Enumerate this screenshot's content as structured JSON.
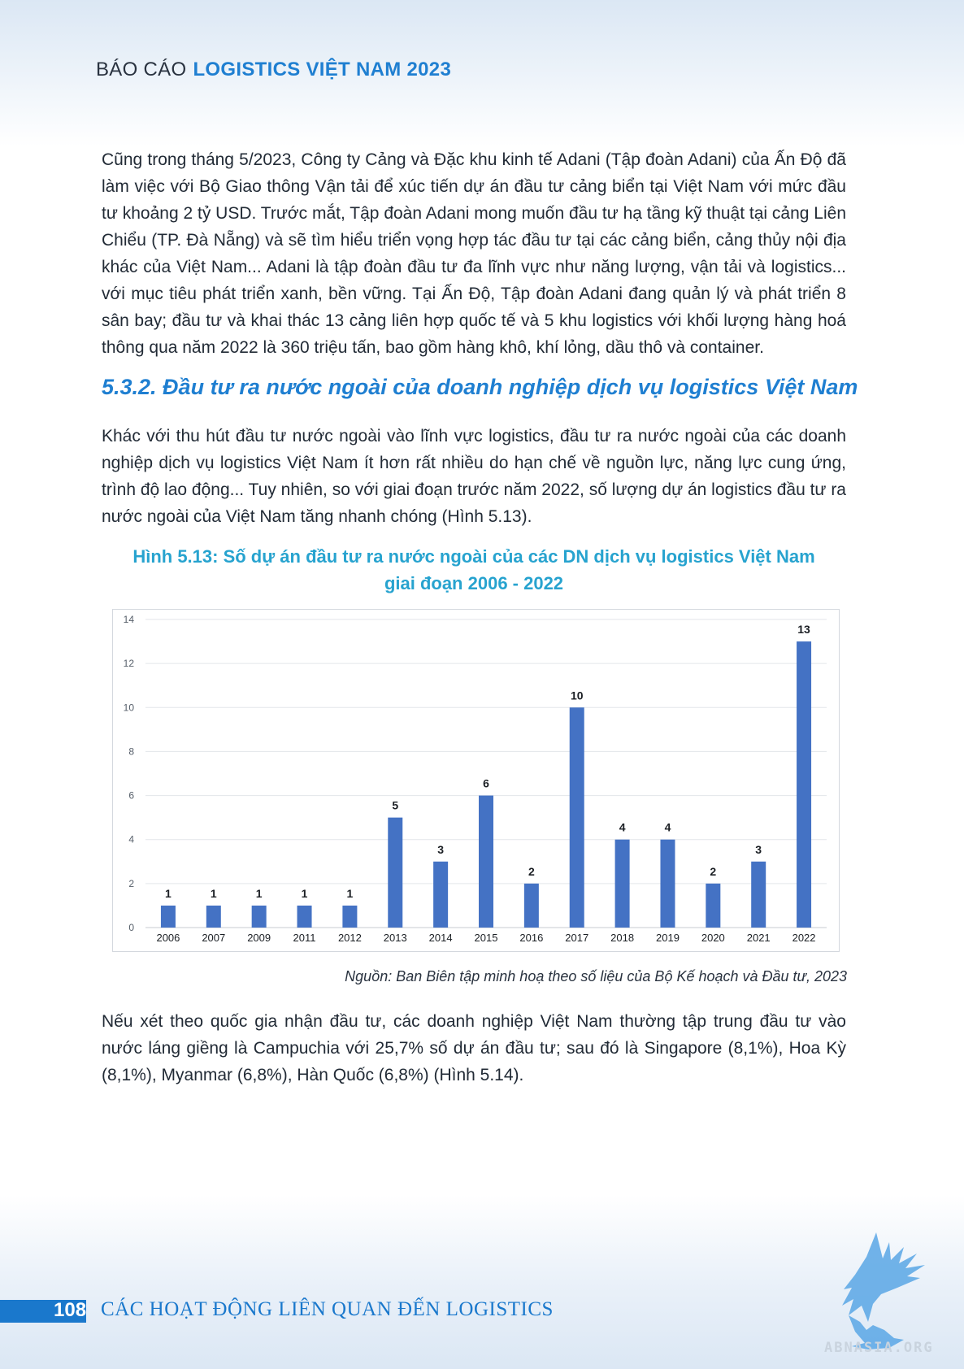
{
  "header": {
    "prefix": "BÁO CÁO",
    "title": "LOGISTICS VIỆT NAM 2023"
  },
  "paragraphs": {
    "p1": "Cũng trong tháng 5/2023, Công ty Cảng và Đặc khu kinh tế Adani (Tập đoàn Adani) của Ấn Độ đã làm việc với Bộ Giao thông Vận tải để xúc tiến dự án đầu tư cảng biển tại Việt Nam với mức đầu tư khoảng 2 tỷ USD. Trước mắt, Tập đoàn Adani mong muốn đầu tư hạ tầng kỹ thuật tại cảng Liên Chiểu (TP. Đà Nẵng) và sẽ tìm hiểu triển vọng hợp tác đầu tư tại các cảng biển, cảng thủy nội địa khác của Việt Nam... Adani là tập đoàn đầu tư đa lĩnh vực như năng lượng, vận tải và logistics... với mục tiêu phát triển xanh, bền vững. Tại Ấn Độ, Tập đoàn Adani đang quản lý và phát triển 8 sân bay; đầu tư và khai thác 13 cảng liên hợp quốc tế và 5 khu logistics với khối lượng hàng hoá thông qua năm 2022 là 360 triệu tấn, bao gồm hàng khô, khí lỏng, dầu thô và container.",
    "section_heading": "5.3.2. Đầu tư ra nước ngoài của doanh nghiệp dịch vụ logistics Việt Nam",
    "p2": "Khác với thu hút đầu tư nước ngoài vào lĩnh vực logistics, đầu tư ra nước ngoài của các doanh nghiệp dịch vụ logistics Việt Nam ít hơn rất nhiều do hạn chế về nguồn lực, năng lực cung ứng, trình độ lao động... Tuy nhiên, so với giai đoạn trước năm 2022, số lượng dự án logistics đầu tư ra nước ngoài của Việt Nam tăng nhanh chóng (Hình 5.13).",
    "p3": "Nếu xét theo quốc gia nhận đầu tư, các doanh nghiệp Việt Nam thường tập trung đầu tư vào nước láng giềng là Campuchia với 25,7% số dự án đầu tư; sau đó là Singapore (8,1%), Hoa Kỳ (8,1%), Myanmar (6,8%), Hàn Quốc (6,8%) (Hình 5.14)."
  },
  "figure": {
    "title_line1": "Hình 5.13: Số dự án đầu tư ra nước ngoài của các DN dịch vụ logistics Việt Nam",
    "title_line2": "giai đoạn 2006 - 2022",
    "source": "Nguồn: Ban Biên tập minh hoạ theo số liệu của Bộ Kế hoạch và Đầu tư, 2023"
  },
  "chart_data": {
    "type": "bar",
    "title": "Hình 5.13: Số dự án đầu tư ra nước ngoài của các DN dịch vụ logistics Việt Nam giai đoạn 2006 - 2022",
    "categories": [
      "2006",
      "2007",
      "2009",
      "2011",
      "2012",
      "2013",
      "2014",
      "2015",
      "2016",
      "2017",
      "2018",
      "2019",
      "2020",
      "2021",
      "2022"
    ],
    "values": [
      1,
      1,
      1,
      1,
      1,
      5,
      3,
      6,
      2,
      10,
      4,
      4,
      2,
      3,
      13
    ],
    "ylim": [
      0,
      14
    ],
    "yticks": [
      0,
      2,
      4,
      6,
      8,
      10,
      12,
      14
    ],
    "xlabel": "",
    "ylabel": "",
    "grid": true,
    "data_labels": true,
    "bar_color": "#4472c4"
  },
  "footer": {
    "page_number": "108",
    "title": "CÁC HOẠT ĐỘNG LIÊN QUAN ĐẾN LOGISTICS",
    "logo_text": "ABNASIA.ORG"
  }
}
